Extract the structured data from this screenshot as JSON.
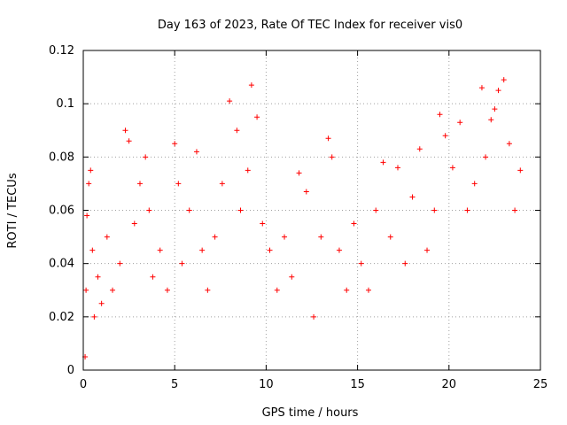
{
  "chart_data": {
    "type": "scatter",
    "title": "Day 163 of 2023, Rate Of TEC Index for receiver vis0",
    "xlabel": "GPS time / hours",
    "ylabel": "ROTI / TECUs",
    "xlim": [
      0,
      25
    ],
    "ylim": [
      0,
      0.12
    ],
    "x_ticks": [
      "0",
      "5",
      "10",
      "15",
      "20",
      "25"
    ],
    "y_ticks": [
      "0",
      "0.02",
      "0.04",
      "0.06",
      "0.08",
      "0.1",
      "0.12"
    ],
    "grid": true,
    "marker": "plus",
    "color": "#ff0000",
    "series": [
      {
        "x": [
          0.1,
          0.15,
          0.2,
          0.3,
          0.4,
          0.5,
          0.6,
          0.8,
          1.0,
          1.3,
          1.6,
          2.0,
          2.3,
          2.5,
          2.8,
          3.1,
          3.4,
          3.6,
          3.8,
          4.2,
          4.6,
          5.0,
          5.2,
          5.4,
          5.8,
          6.2,
          6.5,
          6.8,
          7.2,
          7.6,
          8.0,
          8.4,
          8.6,
          9.0,
          9.2,
          9.5,
          9.8,
          10.2,
          10.6,
          11.0,
          11.4,
          11.8,
          12.2,
          12.6,
          13.0,
          13.4,
          13.6,
          14.0,
          14.4,
          14.8,
          15.2,
          15.6,
          16.0,
          16.4,
          16.8,
          17.2,
          17.6,
          18.0,
          18.4,
          18.8,
          19.2,
          19.5,
          19.8,
          20.2,
          20.6,
          21.0,
          21.4,
          21.8,
          22.0,
          22.3,
          22.5,
          22.7,
          23.0,
          23.3,
          23.6,
          23.9
        ],
        "y": [
          0.005,
          0.03,
          0.058,
          0.07,
          0.075,
          0.045,
          0.02,
          0.035,
          0.025,
          0.05,
          0.03,
          0.04,
          0.09,
          0.086,
          0.055,
          0.07,
          0.08,
          0.06,
          0.035,
          0.045,
          0.03,
          0.085,
          0.07,
          0.04,
          0.06,
          0.082,
          0.045,
          0.03,
          0.05,
          0.07,
          0.101,
          0.09,
          0.06,
          0.075,
          0.107,
          0.095,
          0.055,
          0.045,
          0.03,
          0.05,
          0.035,
          0.074,
          0.067,
          0.02,
          0.05,
          0.087,
          0.08,
          0.045,
          0.03,
          0.055,
          0.04,
          0.03,
          0.06,
          0.078,
          0.05,
          0.076,
          0.04,
          0.065,
          0.083,
          0.045,
          0.06,
          0.096,
          0.088,
          0.076,
          0.093,
          0.06,
          0.07,
          0.106,
          0.08,
          0.094,
          0.098,
          0.105,
          0.109,
          0.085,
          0.06,
          0.075
        ]
      }
    ]
  }
}
